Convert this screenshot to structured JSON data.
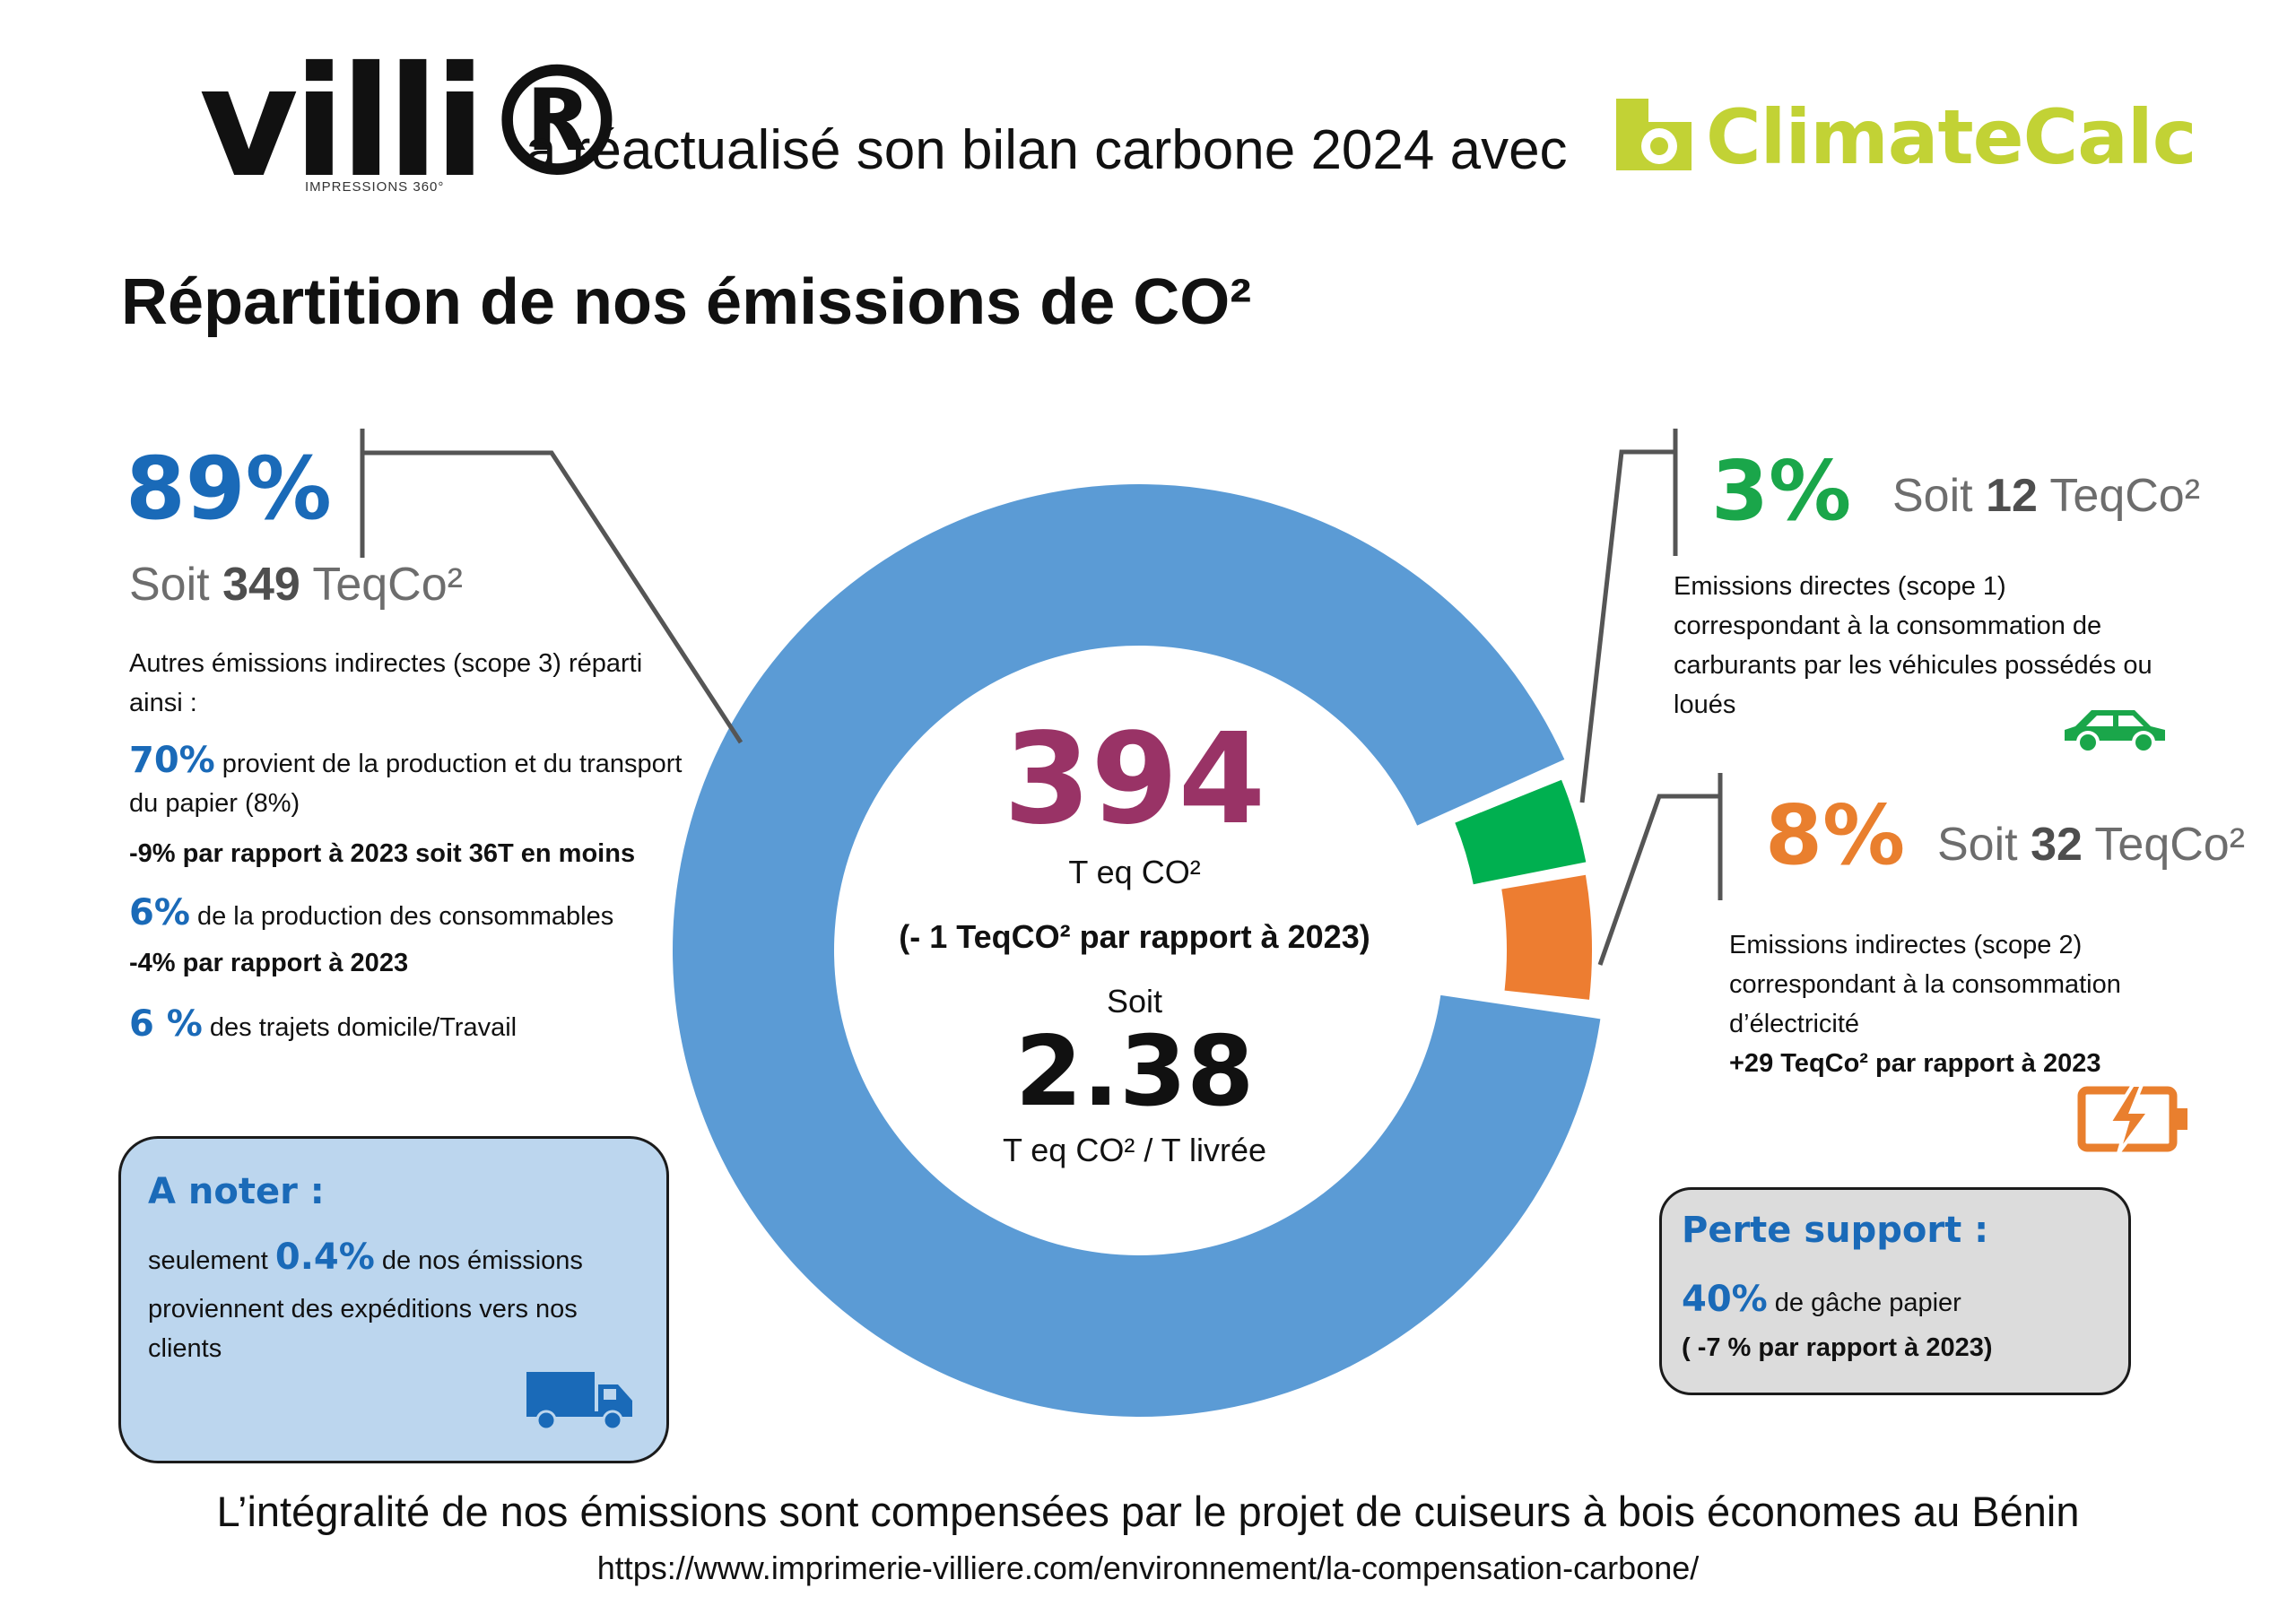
{
  "header": {
    "brand": "villi®",
    "brand_sub": "IMPRESSIONS 360°",
    "text": "a réactualisé son bilan carbone 2024 avec",
    "partner": "ClimateCalc"
  },
  "title": "Répartition de nos émissions de CO²",
  "left_panel": {
    "pct": "89%",
    "soit_prefix": "Soit ",
    "soit_value": "349",
    "soit_unit": " TeqCo²",
    "desc": "Autres émissions indirectes (scope 3) réparti ainsi :",
    "items": [
      {
        "pct": "70%",
        "text": " provient de la production et du transport du papier (8%)",
        "note": "-9% par rapport à 2023 soit 36T en moins"
      },
      {
        "pct": "6%",
        "text": "  de la production des consommables",
        "note": "-4% par rapport à 2023"
      },
      {
        "pct": "6 %",
        "text": "  des trajets domicile/Travail",
        "note": ""
      }
    ]
  },
  "right_top": {
    "pct": "3%",
    "soit_prefix": "Soit ",
    "soit_value": "12",
    "soit_unit": " TeqCo²",
    "desc_lines": [
      "Emissions directes (scope 1)",
      "correspondant à la consommation de",
      "carburants par les véhicules possédés ou",
      "loués"
    ]
  },
  "right_mid": {
    "pct": "8%",
    "soit_prefix": "Soit ",
    "soit_value": "32",
    "soit_unit": " TeqCo²",
    "desc_lines": [
      "Emissions indirectes (scope 2)",
      "correspondant à la consommation",
      "d’électricité"
    ],
    "note": "+29 TeqCo² par rapport à 2023"
  },
  "center": {
    "total": "394",
    "total_unit": "T eq CO²",
    "delta": "(- 1 TeqCO² par rapport à 2023)",
    "soit": "Soit",
    "ratio": "2.38",
    "ratio_unit": "T eq CO² / T livrée"
  },
  "note_box": {
    "title": "A noter :",
    "pre": "seulement ",
    "pct": "0.4%",
    "post": "  de nos émissions",
    "line2": "proviennent des expéditions vers nos",
    "line3": "clients"
  },
  "perte_box": {
    "title": "Perte support :",
    "pct": "40%",
    "text": "  de gâche papier",
    "note": "( -7 % par rapport à 2023)"
  },
  "footer": {
    "line1": "L’intégralité de nos émissions sont compensées par le projet de cuiseurs à bois économes au Bénin",
    "url": "https://www.imprimerie-villiere.com/environnement/la-compensation-carbone/"
  },
  "chart_data": {
    "type": "pie",
    "variant": "donut",
    "categories": [
      "Scope 3",
      "Scope 1",
      "Scope 2"
    ],
    "values": [
      89,
      3,
      8
    ],
    "absolute_teqco2": [
      349,
      12,
      32
    ],
    "colors": [
      "#5b9bd5",
      "#00b050",
      "#ed7d31"
    ]
  },
  "icons": {
    "car": "car-icon",
    "battery": "battery-bolt-icon",
    "truck": "truck-icon",
    "colors": {
      "green": "#1aa64a",
      "orange": "#e97f2e",
      "blue": "#1a6ab8"
    }
  }
}
